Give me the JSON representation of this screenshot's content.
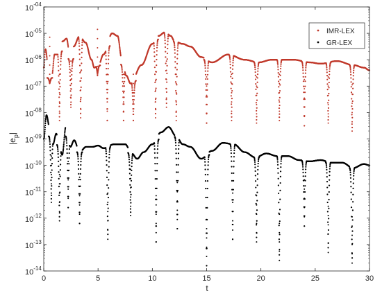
{
  "chart_data": {
    "type": "scatter",
    "xlabel": "t",
    "ylabel": "|e_p|",
    "ylabel_parts": {
      "main": "|e",
      "sub": "p",
      "close": "|"
    },
    "xlim": [
      0,
      30
    ],
    "ylim": [
      1e-14,
      0.0001
    ],
    "yscale": "log",
    "grid": false,
    "legend_position": "top-right",
    "xticks": [
      0,
      5,
      10,
      15,
      20,
      25,
      30
    ],
    "xtick_labels": [
      "0",
      "5",
      "10",
      "15",
      "20",
      "25",
      "30"
    ],
    "yticks": [
      -14,
      -13,
      -12,
      -11,
      -10,
      -9,
      -8,
      -7,
      -6,
      -5,
      -4
    ],
    "ytick_labels": [
      {
        "base": "10",
        "exp": "-14"
      },
      {
        "base": "10",
        "exp": "-13"
      },
      {
        "base": "10",
        "exp": "-12"
      },
      {
        "base": "10",
        "exp": "-11"
      },
      {
        "base": "10",
        "exp": "-10"
      },
      {
        "base": "10",
        "exp": "-09"
      },
      {
        "base": "10",
        "exp": "-08"
      },
      {
        "base": "10",
        "exp": "-07"
      },
      {
        "base": "10",
        "exp": "-06"
      },
      {
        "base": "10",
        "exp": "-05"
      },
      {
        "base": "10",
        "exp": "-04"
      }
    ],
    "series": [
      {
        "name": "IMR-LEX",
        "color": "#c0392b",
        "marker": "dot",
        "envelope": [
          [
            0,
            -6.3
          ],
          [
            0.15,
            -5.6
          ],
          [
            0.45,
            -6.35
          ],
          [
            0.6,
            -6.8
          ],
          [
            0.75,
            -6.6
          ],
          [
            1.0,
            -5.8
          ],
          [
            1.3,
            -5.8
          ],
          [
            1.75,
            -5.3
          ],
          [
            2.1,
            -5.2
          ],
          [
            2.45,
            -6.0
          ],
          [
            2.75,
            -5.5
          ],
          [
            3.3,
            -5.1
          ],
          [
            3.85,
            -5.35
          ],
          [
            4.4,
            -6.0
          ],
          [
            4.65,
            -6.3
          ],
          [
            5.05,
            -6.2
          ],
          [
            5.5,
            -5.8
          ],
          [
            6.3,
            -5.0
          ],
          [
            6.8,
            -5.1
          ],
          [
            7.2,
            -6.0
          ],
          [
            7.6,
            -6.6
          ],
          [
            8.0,
            -6.9
          ],
          [
            9.0,
            -6.2
          ],
          [
            10.0,
            -5.4
          ],
          [
            10.55,
            -5.1
          ],
          [
            11.2,
            -4.95
          ],
          [
            11.7,
            -5.1
          ],
          [
            12.05,
            -5.3
          ],
          [
            12.8,
            -5.4
          ],
          [
            13.5,
            -5.5
          ],
          [
            14.5,
            -5.9
          ],
          [
            15.5,
            -6.1
          ],
          [
            17.0,
            -5.8
          ],
          [
            18.5,
            -6.0
          ],
          [
            19.8,
            -6.1
          ],
          [
            21.0,
            -6.0
          ],
          [
            23.0,
            -6.0
          ],
          [
            24.5,
            -6.1
          ],
          [
            25.5,
            -6.15
          ],
          [
            27.0,
            -6.05
          ],
          [
            28.5,
            -6.2
          ],
          [
            29.5,
            -6.3
          ],
          [
            30.0,
            -6.4
          ]
        ],
        "dips": [
          [
            0.55,
            -6.9
          ],
          [
            1.45,
            -8.3
          ],
          [
            2.5,
            -7.8
          ],
          [
            3.4,
            -8.2
          ],
          [
            4.95,
            -6.6
          ],
          [
            5.85,
            -8.3
          ],
          [
            7.35,
            -8.3
          ],
          [
            8.25,
            -8.3
          ],
          [
            10.3,
            -8.2
          ],
          [
            11.3,
            -7.8
          ],
          [
            12.2,
            -8.3
          ],
          [
            15.0,
            -8.4
          ],
          [
            17.3,
            -8.3
          ],
          [
            19.6,
            -8.4
          ],
          [
            21.7,
            -8.3
          ],
          [
            24.0,
            -8.5
          ],
          [
            26.2,
            -8.4
          ],
          [
            28.4,
            -8.7
          ]
        ]
      },
      {
        "name": "GR-LEX",
        "color": "#000000",
        "marker": "dot",
        "envelope": [
          [
            0,
            -9.0
          ],
          [
            0.25,
            -8.1
          ],
          [
            0.55,
            -8.6
          ],
          [
            0.85,
            -9.2
          ],
          [
            1.15,
            -8.8
          ],
          [
            1.4,
            -9.2
          ],
          [
            1.7,
            -9.6
          ],
          [
            2.05,
            -8.5
          ],
          [
            2.45,
            -9.3
          ],
          [
            2.8,
            -9.05
          ],
          [
            3.3,
            -9.5
          ],
          [
            3.9,
            -9.3
          ],
          [
            4.5,
            -9.3
          ],
          [
            5.0,
            -9.25
          ],
          [
            5.5,
            -9.35
          ],
          [
            6.5,
            -9.2
          ],
          [
            7.5,
            -9.2
          ],
          [
            8.1,
            -9.55
          ],
          [
            8.6,
            -9.75
          ],
          [
            9.2,
            -9.5
          ],
          [
            10.0,
            -9.2
          ],
          [
            10.8,
            -8.75
          ],
          [
            11.5,
            -8.55
          ],
          [
            12.2,
            -8.9
          ],
          [
            12.8,
            -9.2
          ],
          [
            13.5,
            -9.3
          ],
          [
            14.5,
            -9.75
          ],
          [
            15.5,
            -9.45
          ],
          [
            16.5,
            -9.15
          ],
          [
            17.5,
            -9.2
          ],
          [
            18.5,
            -9.5
          ],
          [
            19.5,
            -9.7
          ],
          [
            20.5,
            -9.55
          ],
          [
            21.5,
            -9.65
          ],
          [
            22.5,
            -9.65
          ],
          [
            23.5,
            -9.8
          ],
          [
            24.5,
            -9.85
          ],
          [
            25.5,
            -9.8
          ],
          [
            26.5,
            -9.9
          ],
          [
            27.5,
            -9.9
          ],
          [
            28.5,
            -10.1
          ],
          [
            29.5,
            -9.95
          ],
          [
            30.0,
            -10.0
          ]
        ],
        "dips": [
          [
            0.7,
            -11.4
          ],
          [
            1.45,
            -12.1
          ],
          [
            2.25,
            -11.6
          ],
          [
            3.3,
            -12.2
          ],
          [
            5.9,
            -12.8
          ],
          [
            8.0,
            -11.9
          ],
          [
            10.35,
            -12.9
          ],
          [
            12.3,
            -12.4
          ],
          [
            15.0,
            -13.8
          ],
          [
            17.4,
            -12.8
          ],
          [
            19.6,
            -12.9
          ],
          [
            21.7,
            -13.6
          ],
          [
            24.0,
            -12.3
          ],
          [
            26.2,
            -13.3
          ],
          [
            28.4,
            -13.7
          ]
        ]
      }
    ]
  }
}
